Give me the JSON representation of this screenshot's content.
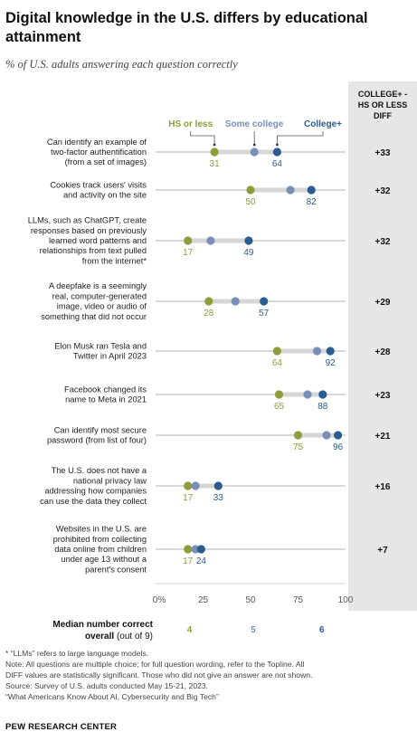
{
  "title": "Digital knowledge in the U.S. differs by educational attainment",
  "subtitle": "% of U.S. adults answering each question correctly",
  "colors": {
    "hs_or_less": "#8f9c3c",
    "some_college": "#7a8fb8",
    "college_plus": "#2a5c8f",
    "connector": "#d6d6d6",
    "diff_panel": "#e6e6e6"
  },
  "chart_data": {
    "type": "dot",
    "xlim": [
      0,
      100
    ],
    "xticks": [
      "0%",
      "25",
      "50",
      "75",
      "100"
    ],
    "xtick_values": [
      0,
      25,
      50,
      75,
      100
    ],
    "legend": [
      "HS or less",
      "Some college",
      "College+"
    ],
    "diff_header": [
      "COLLEGE+ -",
      "HS OR LESS",
      "DIFF"
    ],
    "categories": [
      [
        "Can identify an example of",
        "two-factor authentification",
        "(from a set of images)"
      ],
      [
        "Cookies track users' visits",
        "and activity on the site"
      ],
      [
        "LLMs, such as ChatGPT, create",
        "responses based on previously",
        "learned word patterns and",
        "relationships from text pulled",
        "from the internet*"
      ],
      [
        "A deepfake is a seemingly",
        "real, computer-generated",
        "image, video or audio of",
        "something that did not occur"
      ],
      [
        "Elon Musk ran Tesla and",
        "Twitter in April 2023"
      ],
      [
        "Facebook changed its",
        "name to Meta in 2021"
      ],
      [
        "Can identify most secure",
        "password (from list of four)"
      ],
      [
        "The U.S. does not have a",
        "national privacy law",
        "addressing how companies",
        "can use the data they collect"
      ],
      [
        "Websites in the U.S. are",
        "prohibited from collecting",
        "data online from children",
        "under age 13 without a",
        "parent's consent"
      ]
    ],
    "series": [
      {
        "name": "HS or less",
        "values": [
          31,
          50,
          17,
          28,
          64,
          65,
          75,
          17,
          17
        ]
      },
      {
        "name": "Some college",
        "values": [
          52,
          71,
          29,
          42,
          85,
          80,
          90,
          21,
          21
        ]
      },
      {
        "name": "College+",
        "values": [
          64,
          82,
          49,
          57,
          92,
          88,
          96,
          33,
          24
        ]
      }
    ],
    "labeled_values": {
      "hs_or_less": [
        "31",
        "50",
        "17",
        "28",
        "64",
        "65",
        "75",
        "17",
        "17"
      ],
      "college_plus": [
        "64",
        "82",
        "49",
        "57",
        "92",
        "88",
        "96",
        "33",
        "24"
      ]
    },
    "diff": [
      "+33",
      "+32",
      "+32",
      "+29",
      "+28",
      "+23",
      "+21",
      "+16",
      "+7"
    ]
  },
  "median": {
    "label_bold": "Median number correct",
    "label_bold2": "overall",
    "label_normal": " (out of 9)",
    "values": [
      "4",
      "5",
      "6"
    ]
  },
  "notes": [
    "* “LLMs” refers to large language models.",
    "Note: All questions are multiple choice; for full question wording, refer to the Topline. All",
    "DIFF values are statistically significant. Those who did not give an answer are not shown.",
    "Source: Survey of U.S. adults conducted May 15-21, 2023.",
    "“What Americans Know About AI, Cybersecurity and Big Tech”"
  ],
  "footer": "PEW RESEARCH CENTER"
}
